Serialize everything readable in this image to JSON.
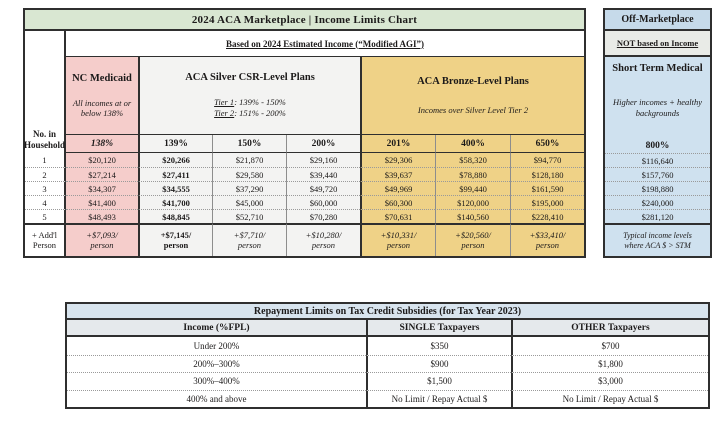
{
  "main_table": {
    "title": "2024 ACA Marketplace | Income Limits Chart",
    "subtitle": "Based on 2024 Estimated Income (“Modified AGI”)",
    "household_line1": "No. in",
    "household_line2": "Household",
    "groups": {
      "medicaid": {
        "name": "NC Medicaid",
        "desc": "All incomes at or below 138%"
      },
      "silver": {
        "name": "ACA Silver CSR-Level Plans",
        "tier1_label": "Tier 1",
        "tier1_range": ": 139% - 150%",
        "tier2_label": "Tier 2",
        "tier2_range": ": 151% - 200%"
      },
      "bronze": {
        "name": "ACA Bronze-Level Plans",
        "desc": "Incomes over Silver Level Tier 2"
      }
    },
    "columns": [
      "138%",
      "139%",
      "150%",
      "200%",
      "201%",
      "400%",
      "650%"
    ],
    "rows": [
      {
        "label": "1",
        "values": [
          "$20,120",
          "$20,266",
          "$21,870",
          "$29,160",
          "$29,306",
          "$58,320",
          "$94,770"
        ]
      },
      {
        "label": "2",
        "values": [
          "$27,214",
          "$27,411",
          "$29,580",
          "$39,440",
          "$39,637",
          "$78,880",
          "$128,180"
        ]
      },
      {
        "label": "3",
        "values": [
          "$34,307",
          "$34,555",
          "$37,290",
          "$49,720",
          "$49,969",
          "$99,440",
          "$161,590"
        ]
      },
      {
        "label": "4",
        "values": [
          "$41,400",
          "$41,700",
          "$45,000",
          "$60,000",
          "$60,300",
          "$120,000",
          "$195,000"
        ]
      },
      {
        "label": "5",
        "values": [
          "$48,493",
          "$48,845",
          "$52,710",
          "$70,280",
          "$70,631",
          "$140,560",
          "$228,410"
        ]
      }
    ],
    "addl_row": {
      "label_line1": "+ Add'l",
      "label_line2": "Person",
      "values": [
        "+$7,093/",
        "+$7,145/",
        "+$7,710/",
        "+$10,280/",
        "+$10,331/",
        "+$20,560/",
        "+$33,410/"
      ],
      "unit": "person"
    }
  },
  "off_marketplace": {
    "title": "Off-Marketplace",
    "subtitle": "NOT based on Income",
    "plan_name": "Short Term Medical",
    "desc": "Higher incomes + healthy backgrounds",
    "column": "800%",
    "values": [
      "$116,640",
      "$157,760",
      "$198,880",
      "$240,000",
      "$281,120"
    ],
    "note_line1": "Typical income levels",
    "note_line2": "where ACA $ > STM"
  },
  "repayment_table": {
    "title": "Repayment Limits on Tax Credit Subsidies (for Tax Year 2023)",
    "headers": [
      "Income (%FPL)",
      "SINGLE Taxpayers",
      "OTHER Taxpayers"
    ],
    "rows": [
      [
        "Under 200%",
        "$350",
        "$700"
      ],
      [
        "200%–300%",
        "$900",
        "$1,800"
      ],
      [
        "300%–400%",
        "$1,500",
        "$3,000"
      ],
      [
        "400% and above",
        "No Limit / Repay Actual $",
        "No Limit / Repay Actual $"
      ]
    ]
  },
  "colors": {
    "green_header": "#d9e7d2",
    "pink": "#f5cdcb",
    "silver": "#f3f3f2",
    "bronze": "#efd287",
    "stm_blue": "#cfe1ef",
    "off_header_blue": "#c6daea",
    "not_based_bg": "#e9ebe7",
    "repay_title_bg": "#d8e4ee",
    "repay_header_bg": "#e5e9ec"
  }
}
